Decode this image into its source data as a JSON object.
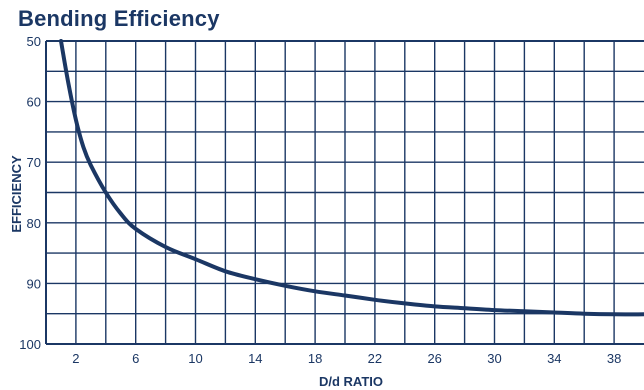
{
  "chart_data": {
    "type": "line",
    "title": "Bending Efficiency",
    "xlabel": "D/d RATIO",
    "ylabel": "EFFICIENCY",
    "xlim": [
      0,
      40
    ],
    "ylim": [
      50,
      100
    ],
    "y_inverted": true,
    "x_ticks": [
      2,
      6,
      10,
      14,
      18,
      22,
      26,
      30,
      34,
      38
    ],
    "y_ticks": [
      50,
      60,
      70,
      80,
      90,
      100
    ],
    "grid": true,
    "series": [
      {
        "x": [
          1.0,
          1.5,
          2.0,
          2.5,
          3.0,
          4.0,
          5.0,
          6.0,
          8.0,
          10.0,
          12.0,
          14.0,
          16.0,
          18.0,
          20.0,
          22.0,
          24.0,
          26.0,
          28.0,
          30.0,
          32.0,
          34.0,
          36.0,
          38.0,
          40.0
        ],
        "y": [
          50.0,
          57.0,
          63.0,
          67.5,
          70.5,
          75.0,
          78.5,
          81.0,
          84.0,
          86.0,
          88.0,
          89.3,
          90.4,
          91.3,
          92.0,
          92.7,
          93.3,
          93.8,
          94.1,
          94.4,
          94.6,
          94.8,
          95.0,
          95.1,
          95.1
        ]
      }
    ],
    "colors": {
      "line": "#1b3764",
      "grid": "#1b3764",
      "text": "#1b3764"
    }
  }
}
